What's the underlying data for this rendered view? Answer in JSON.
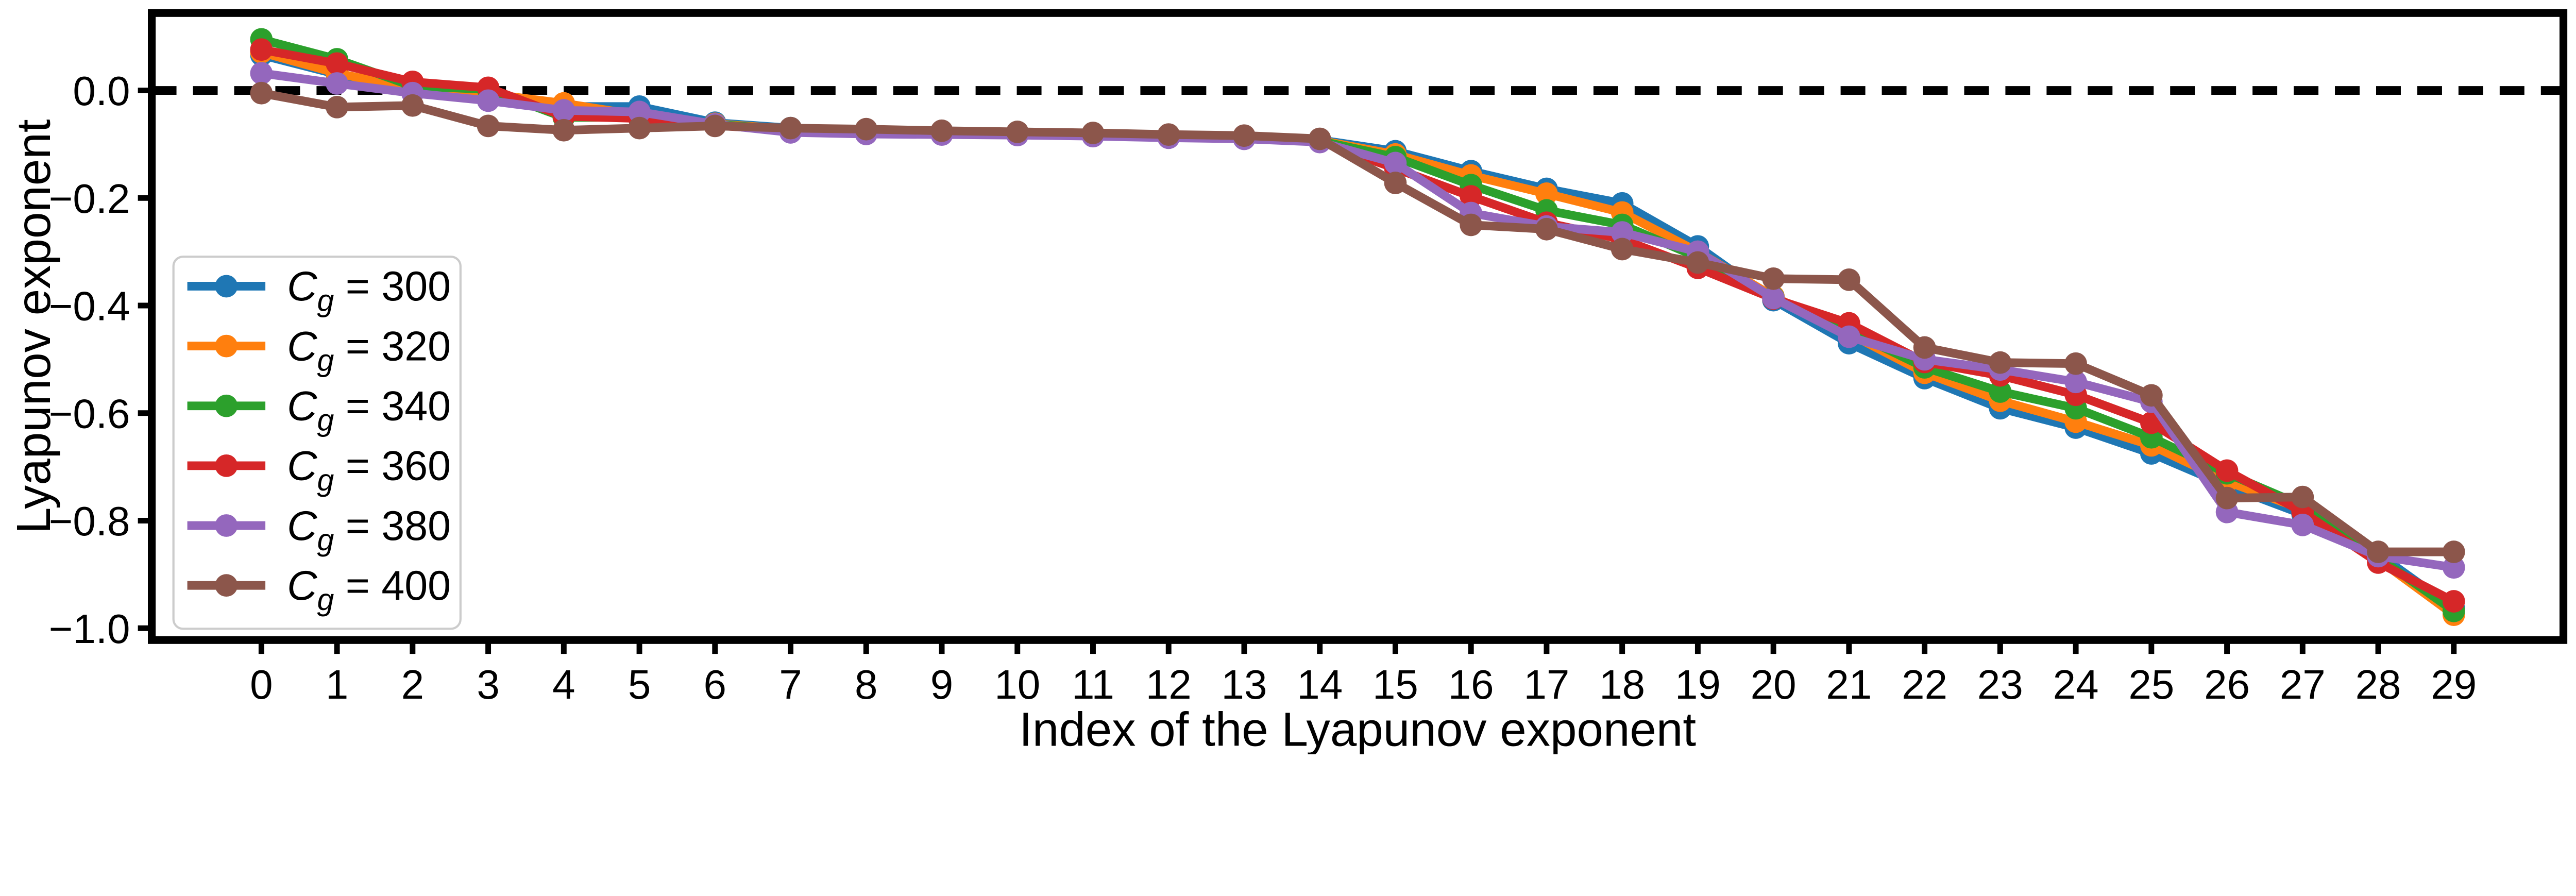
{
  "chart_data": {
    "type": "line",
    "title": "",
    "xlabel": "Index of the Lyapunov exponent",
    "ylabel": "Lyapunov exponent",
    "x": [
      0,
      1,
      2,
      3,
      4,
      5,
      6,
      7,
      8,
      9,
      10,
      11,
      12,
      13,
      14,
      15,
      16,
      17,
      18,
      19,
      20,
      21,
      22,
      23,
      24,
      25,
      26,
      27,
      28,
      29
    ],
    "xlim": [
      -1.45,
      30.45
    ],
    "ylim": [
      -1.022,
      0.144
    ],
    "xtick_labels": [
      "0",
      "1",
      "2",
      "3",
      "4",
      "5",
      "6",
      "7",
      "8",
      "9",
      "10",
      "11",
      "12",
      "13",
      "14",
      "15",
      "16",
      "17",
      "18",
      "19",
      "20",
      "21",
      "22",
      "23",
      "24",
      "25",
      "26",
      "27",
      "28",
      "29"
    ],
    "yticks": [
      0.0,
      -0.2,
      -0.4,
      -0.6,
      -0.8,
      -1.0
    ],
    "ytick_labels": [
      "0.0",
      "−0.2",
      "−0.4",
      "−0.6",
      "−0.8",
      "−1.0"
    ],
    "grid": false,
    "zero_line": {
      "y": 0.0,
      "style": "dashed",
      "color": "#000000"
    },
    "legend_position": "upper-left-inside",
    "series": [
      {
        "name": "C_g = 300",
        "color": "#1f77b4",
        "values": [
          0.066,
          0.03,
          0.004,
          -0.005,
          -0.03,
          -0.03,
          -0.06,
          -0.07,
          -0.077,
          -0.08,
          -0.081,
          -0.083,
          -0.085,
          -0.087,
          -0.092,
          -0.113,
          -0.15,
          -0.183,
          -0.21,
          -0.29,
          -0.39,
          -0.47,
          -0.535,
          -0.591,
          -0.627,
          -0.675,
          -0.735,
          -0.788,
          -0.862,
          -0.963
        ]
      },
      {
        "name": "C_g = 320",
        "color": "#ff7f0e",
        "values": [
          0.071,
          0.032,
          0.003,
          -0.006,
          -0.024,
          -0.046,
          -0.062,
          -0.072,
          -0.078,
          -0.08,
          -0.082,
          -0.084,
          -0.086,
          -0.088,
          -0.093,
          -0.119,
          -0.158,
          -0.192,
          -0.227,
          -0.3,
          -0.383,
          -0.452,
          -0.525,
          -0.577,
          -0.616,
          -0.66,
          -0.727,
          -0.779,
          -0.872,
          -0.975
        ]
      },
      {
        "name": "C_g = 340",
        "color": "#2ca02c",
        "values": [
          0.095,
          0.058,
          0.008,
          0.002,
          -0.05,
          -0.05,
          -0.063,
          -0.073,
          -0.078,
          -0.081,
          -0.082,
          -0.084,
          -0.086,
          -0.088,
          -0.094,
          -0.124,
          -0.176,
          -0.223,
          -0.25,
          -0.31,
          -0.385,
          -0.447,
          -0.515,
          -0.56,
          -0.591,
          -0.645,
          -0.712,
          -0.772,
          -0.868,
          -0.968
        ]
      },
      {
        "name": "C_g = 360",
        "color": "#d62728",
        "values": [
          0.076,
          0.05,
          0.016,
          0.005,
          -0.048,
          -0.052,
          -0.065,
          -0.074,
          -0.079,
          -0.081,
          -0.082,
          -0.084,
          -0.087,
          -0.089,
          -0.095,
          -0.145,
          -0.197,
          -0.246,
          -0.277,
          -0.33,
          -0.387,
          -0.433,
          -0.505,
          -0.53,
          -0.566,
          -0.618,
          -0.707,
          -0.784,
          -0.878,
          -0.95
        ]
      },
      {
        "name": "C_g = 380",
        "color": "#9467bd",
        "values": [
          0.032,
          0.013,
          -0.005,
          -0.019,
          -0.037,
          -0.04,
          -0.063,
          -0.078,
          -0.081,
          -0.082,
          -0.083,
          -0.085,
          -0.088,
          -0.09,
          -0.096,
          -0.135,
          -0.228,
          -0.253,
          -0.264,
          -0.3,
          -0.386,
          -0.458,
          -0.5,
          -0.519,
          -0.542,
          -0.579,
          -0.784,
          -0.808,
          -0.866,
          -0.887
        ]
      },
      {
        "name": "C_g = 400",
        "color": "#8c564b",
        "values": [
          -0.005,
          -0.031,
          -0.028,
          -0.066,
          -0.074,
          -0.07,
          -0.066,
          -0.07,
          -0.072,
          -0.075,
          -0.077,
          -0.079,
          -0.082,
          -0.084,
          -0.09,
          -0.172,
          -0.25,
          -0.258,
          -0.295,
          -0.32,
          -0.35,
          -0.352,
          -0.478,
          -0.506,
          -0.508,
          -0.567,
          -0.758,
          -0.756,
          -0.858,
          -0.858
        ]
      }
    ]
  }
}
